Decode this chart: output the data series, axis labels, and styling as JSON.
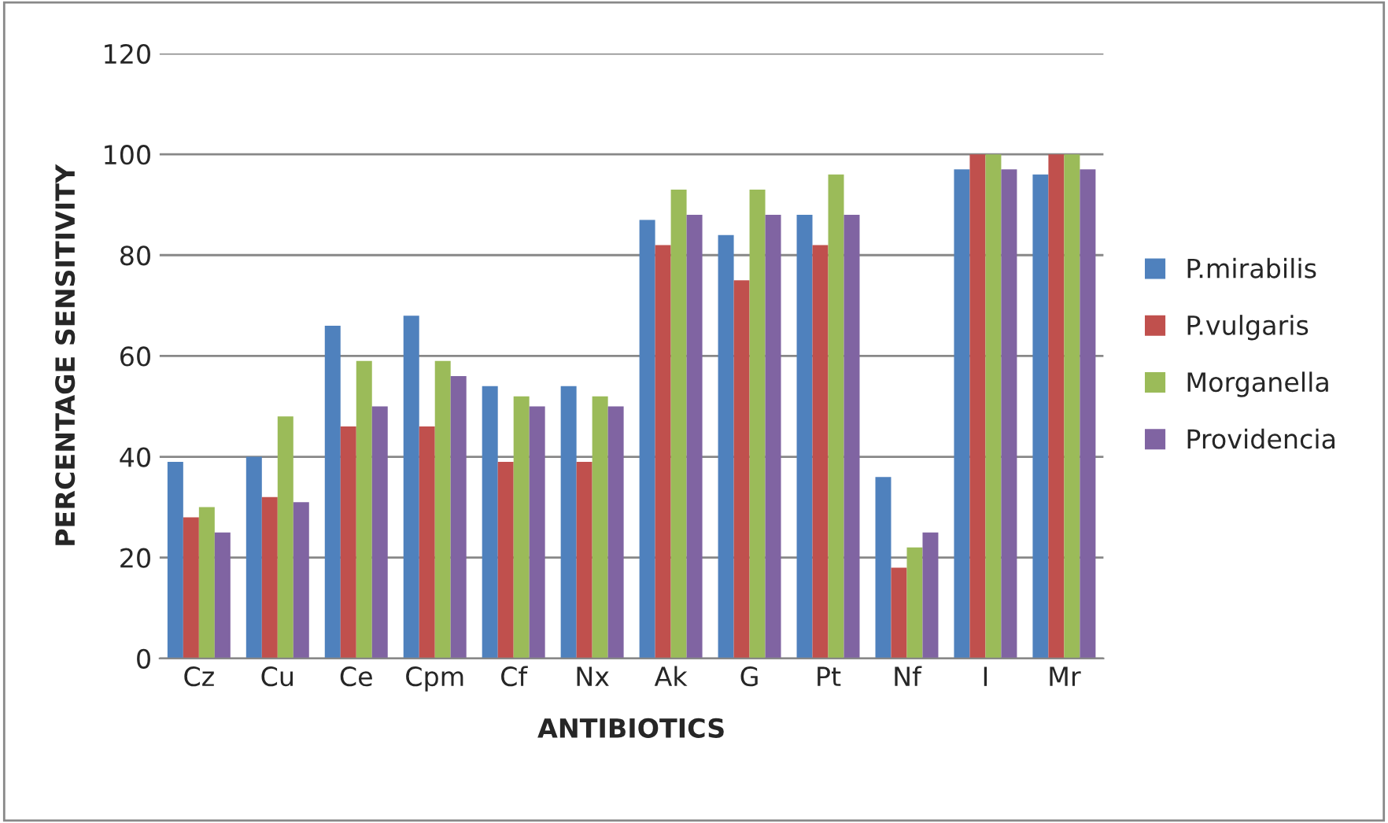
{
  "chart_data": {
    "type": "bar",
    "xlabel": "ANTIBIOTICS",
    "ylabel": "PERCENTAGE SENSITIVITY",
    "categories": [
      "Cz",
      "Cu",
      "Ce",
      "Cpm",
      "Cf",
      "Nx",
      "Ak",
      "G",
      "Pt",
      "Nf",
      "I",
      "Mr"
    ],
    "series": [
      {
        "name": "P.mirabilis",
        "color": "#4f81bd",
        "values": [
          39,
          40,
          66,
          68,
          54,
          54,
          87,
          84,
          88,
          36,
          97,
          96
        ]
      },
      {
        "name": "P.vulgaris",
        "color": "#c0504d",
        "values": [
          28,
          32,
          46,
          46,
          39,
          39,
          82,
          75,
          82,
          18,
          100,
          100
        ]
      },
      {
        "name": "Morganella",
        "color": "#9bbb59",
        "values": [
          30,
          48,
          59,
          59,
          52,
          52,
          93,
          93,
          96,
          22,
          100,
          100
        ]
      },
      {
        "name": "Providencia",
        "color": "#8064a2",
        "values": [
          25,
          31,
          50,
          56,
          50,
          50,
          88,
          88,
          88,
          25,
          97,
          97
        ]
      }
    ],
    "ylim": [
      0,
      120
    ],
    "yticks": [
      0,
      20,
      40,
      60,
      80,
      100,
      120
    ],
    "grid": "y",
    "legend": "right"
  }
}
